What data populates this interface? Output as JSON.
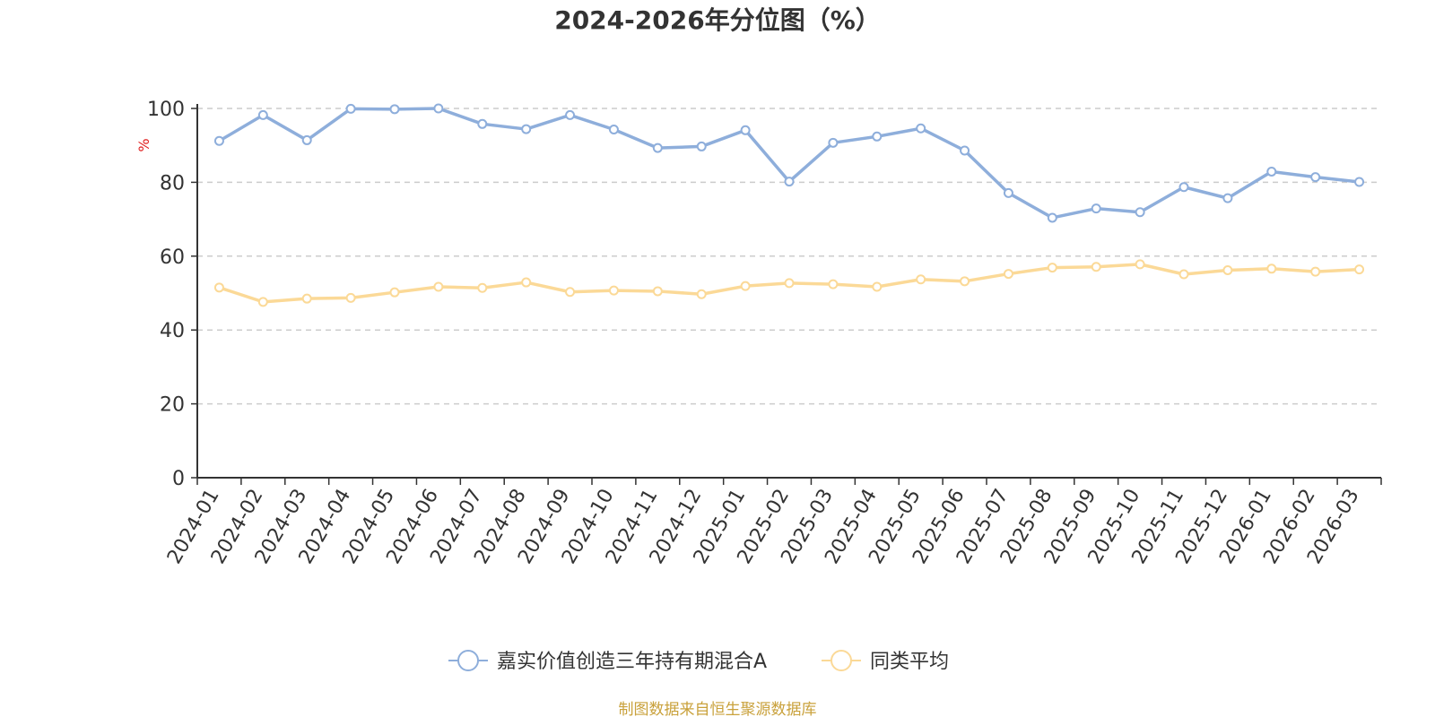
{
  "chart_data": {
    "type": "line",
    "title": "2024-2026年分位图（%）",
    "ylabel": "%",
    "xlabel": "",
    "ylim": [
      0,
      100
    ],
    "yticks": [
      0,
      20,
      40,
      60,
      80,
      100
    ],
    "grid": true,
    "legend_position": "bottom",
    "categories": [
      "2024-01",
      "2024-02",
      "2024-03",
      "2024-04",
      "2024-05",
      "2024-06",
      "2024-07",
      "2024-08",
      "2024-09",
      "2024-10",
      "2024-11",
      "2024-12",
      "2025-01",
      "2025-02",
      "2025-03",
      "2025-04",
      "2025-05",
      "2025-06",
      "2025-07",
      "2025-08",
      "2025-09",
      "2025-10",
      "2025-11",
      "2025-12",
      "2026-01",
      "2026-02",
      "2026-03"
    ],
    "series": [
      {
        "name": "嘉实价值创造三年持有期混合A",
        "color": "#8eaedb",
        "values": [
          91.2,
          98.2,
          91.4,
          99.9,
          99.8,
          100.0,
          95.8,
          94.4,
          98.2,
          94.3,
          89.3,
          89.7,
          94.1,
          80.2,
          90.7,
          92.4,
          94.6,
          88.6,
          77.1,
          70.4,
          72.9,
          71.9,
          78.7,
          75.7,
          82.9,
          81.4,
          80.1
        ]
      },
      {
        "name": "同类平均",
        "color": "#fbd997",
        "values": [
          51.5,
          47.6,
          48.5,
          48.7,
          50.2,
          51.7,
          51.4,
          52.9,
          50.3,
          50.7,
          50.5,
          49.7,
          51.9,
          52.7,
          52.4,
          51.7,
          53.7,
          53.2,
          55.2,
          56.9,
          57.1,
          57.8,
          55.1,
          56.2,
          56.6,
          55.8,
          56.4
        ]
      }
    ],
    "source_text": "制图数据来自恒生聚源数据库"
  }
}
